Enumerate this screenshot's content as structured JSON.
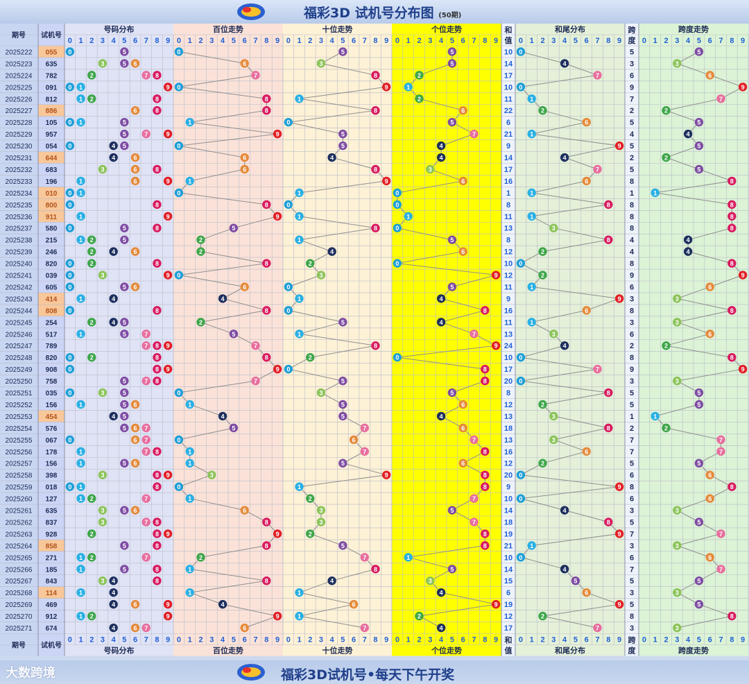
{
  "header": {
    "title": "福彩3D 试机号分布图",
    "count": "(50期)",
    "footer_title": "福彩3D试机号•每天下午开奖",
    "watermark": "大数跨境"
  },
  "columns": {
    "period": "期号",
    "trial": "试机号",
    "number_dist": "号码分布",
    "hundreds": "百位走势",
    "tens": "十位走势",
    "units": "个位走势",
    "sum_top": "和",
    "sum_bottom": "值",
    "sum_tail": "和尾分布",
    "span_top": "跨",
    "span_bottom": "度",
    "span_trend": "跨度走势",
    "digits": [
      "0",
      "1",
      "2",
      "3",
      "4",
      "5",
      "6",
      "7",
      "8",
      "9"
    ]
  },
  "colors": {
    "digit_balls": [
      "#1f9fd8",
      "#2ab0e4",
      "#3ea64a",
      "#8cc45a",
      "#1d2f5e",
      "#7e4ca3",
      "#e58a3a",
      "#e86e9e",
      "#d81b60",
      "#e21f26"
    ],
    "units_band": "#ffff00",
    "hundreds_band": "#fbe2d8",
    "tens_band": "#fdf1d6",
    "dist_band": "#dfe3f5",
    "sum_tail_band": "#e4f0d8",
    "span_band": "#dcf3d6",
    "highlight_row": "#f8c79a"
  },
  "chart_data": {
    "type": "table",
    "title": "福彩3D 试机号分布图",
    "rows": [
      {
        "period": "2025222",
        "num": "055",
        "sum": 10,
        "span": 5
      },
      {
        "period": "2025223",
        "num": "635",
        "sum": 14,
        "span": 3
      },
      {
        "period": "2025224",
        "num": "782",
        "sum": 17,
        "span": 6
      },
      {
        "period": "2025225",
        "num": "091",
        "sum": 10,
        "span": 9
      },
      {
        "period": "2025226",
        "num": "812",
        "sum": 11,
        "span": 7
      },
      {
        "period": "2025227",
        "num": "886",
        "sum": 22,
        "span": 2
      },
      {
        "period": "2025228",
        "num": "105",
        "sum": 6,
        "span": 5
      },
      {
        "period": "2025229",
        "num": "957",
        "sum": 21,
        "span": 4
      },
      {
        "period": "2025230",
        "num": "054",
        "sum": 9,
        "span": 5
      },
      {
        "period": "2025231",
        "num": "644",
        "sum": 14,
        "span": 2
      },
      {
        "period": "2025232",
        "num": "683",
        "sum": 17,
        "span": 5
      },
      {
        "period": "2025233",
        "num": "196",
        "sum": 16,
        "span": 8
      },
      {
        "period": "2025234",
        "num": "010",
        "sum": 1,
        "span": 1
      },
      {
        "period": "2025235",
        "num": "800",
        "sum": 8,
        "span": 8
      },
      {
        "period": "2025236",
        "num": "911",
        "sum": 11,
        "span": 8
      },
      {
        "period": "2025237",
        "num": "580",
        "sum": 13,
        "span": 8
      },
      {
        "period": "2025238",
        "num": "215",
        "sum": 8,
        "span": 4
      },
      {
        "period": "2025239",
        "num": "246",
        "sum": 12,
        "span": 4
      },
      {
        "period": "2025240",
        "num": "820",
        "sum": 10,
        "span": 8
      },
      {
        "period": "2025241",
        "num": "039",
        "sum": 12,
        "span": 9
      },
      {
        "period": "2025242",
        "num": "605",
        "sum": 11,
        "span": 6
      },
      {
        "period": "2025243",
        "num": "414",
        "sum": 9,
        "span": 3
      },
      {
        "period": "2025244",
        "num": "808",
        "sum": 16,
        "span": 8
      },
      {
        "period": "2025245",
        "num": "254",
        "sum": 11,
        "span": 3
      },
      {
        "period": "2025246",
        "num": "517",
        "sum": 13,
        "span": 6
      },
      {
        "period": "2025247",
        "num": "789",
        "sum": 24,
        "span": 2
      },
      {
        "period": "2025248",
        "num": "820",
        "sum": 10,
        "span": 8
      },
      {
        "period": "2025249",
        "num": "908",
        "sum": 17,
        "span": 9
      },
      {
        "period": "2025250",
        "num": "758",
        "sum": 20,
        "span": 3
      },
      {
        "period": "2025251",
        "num": "035",
        "sum": 8,
        "span": 5
      },
      {
        "period": "2025252",
        "num": "156",
        "sum": 12,
        "span": 5
      },
      {
        "period": "2025253",
        "num": "454",
        "sum": 13,
        "span": 1
      },
      {
        "period": "2025254",
        "num": "576",
        "sum": 18,
        "span": 2
      },
      {
        "period": "2025255",
        "num": "067",
        "sum": 13,
        "span": 7
      },
      {
        "period": "2025256",
        "num": "178",
        "sum": 16,
        "span": 7
      },
      {
        "period": "2025257",
        "num": "156",
        "sum": 12,
        "span": 5
      },
      {
        "period": "2025258",
        "num": "398",
        "sum": 20,
        "span": 6
      },
      {
        "period": "2025259",
        "num": "018",
        "sum": 9,
        "span": 8
      },
      {
        "period": "2025260",
        "num": "127",
        "sum": 10,
        "span": 6
      },
      {
        "period": "2025261",
        "num": "635",
        "sum": 14,
        "span": 3
      },
      {
        "period": "2025262",
        "num": "837",
        "sum": 18,
        "span": 5
      },
      {
        "period": "2025263",
        "num": "928",
        "sum": 19,
        "span": 7
      },
      {
        "period": "2025264",
        "num": "858",
        "sum": 21,
        "span": 3
      },
      {
        "period": "2025265",
        "num": "271",
        "sum": 10,
        "span": 6
      },
      {
        "period": "2025266",
        "num": "185",
        "sum": 14,
        "span": 7
      },
      {
        "period": "2025267",
        "num": "843",
        "sum": 15,
        "span": 5
      },
      {
        "period": "2025268",
        "num": "114",
        "sum": 6,
        "span": 3
      },
      {
        "period": "2025269",
        "num": "469",
        "sum": 19,
        "span": 5
      },
      {
        "period": "2025270",
        "num": "912",
        "sum": 12,
        "span": 8
      },
      {
        "period": "2025271",
        "num": "674",
        "sum": 17,
        "span": 3
      }
    ]
  }
}
